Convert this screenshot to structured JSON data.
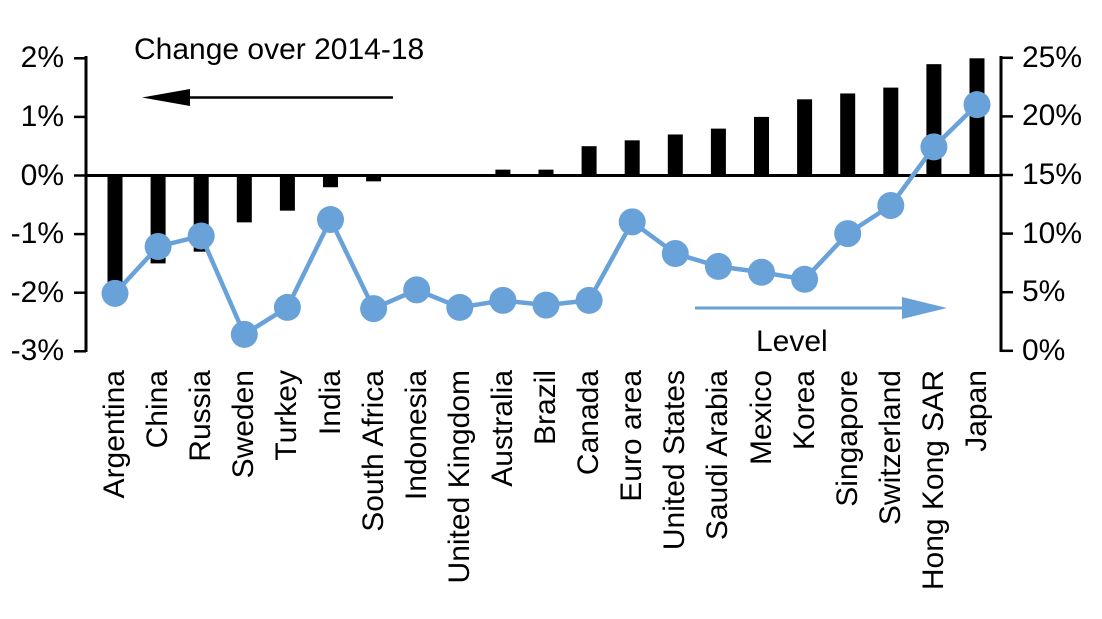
{
  "chart_title": "Change over 2014-18",
  "level_label": "Level",
  "colors": {
    "bar": "#000000",
    "line": "#69A2D8",
    "axis": "#000000"
  },
  "chart_data": {
    "type": "bar+line",
    "title": "Change over 2014-18",
    "categories": [
      "Argentina",
      "China",
      "Russia",
      "Sweden",
      "Turkey",
      "India",
      "South Africa",
      "Indonesia",
      "United Kingdom",
      "Australia",
      "Brazil",
      "Canada",
      "Euro area",
      "United States",
      "Saudi Arabia",
      "Mexico",
      "Korea",
      "Singapore",
      "Switzerland",
      "Hong Kong SAR",
      "Japan"
    ],
    "series": [
      {
        "name": "Change over 2014-18",
        "type": "bar",
        "axis": "left",
        "unit": "%",
        "values": [
          -2.0,
          -1.5,
          -1.3,
          -0.8,
          -0.6,
          -0.2,
          -0.1,
          0.0,
          0.0,
          0.1,
          0.1,
          0.5,
          0.6,
          0.7,
          0.8,
          1.0,
          1.3,
          1.4,
          1.5,
          1.9,
          2.0
        ]
      },
      {
        "name": "Level",
        "type": "line",
        "axis": "right",
        "unit": "%",
        "values": [
          4.9,
          8.9,
          9.8,
          1.4,
          3.7,
          11.2,
          3.6,
          5.2,
          3.7,
          4.3,
          3.9,
          4.3,
          11.0,
          8.3,
          7.2,
          6.7,
          6.1,
          10.0,
          12.4,
          17.4,
          21.0
        ]
      }
    ],
    "left_axis": {
      "tick_labels": [
        "2%",
        "1%",
        "0%",
        "-1%",
        "-2%",
        "-3%"
      ],
      "tick_values": [
        2,
        1,
        0,
        -1,
        -2,
        -3
      ],
      "range": [
        -3,
        2
      ]
    },
    "right_axis": {
      "tick_labels": [
        "25%",
        "20%",
        "15%",
        "10%",
        "5%",
        "0%"
      ],
      "tick_values": [
        25,
        20,
        15,
        10,
        5,
        0
      ],
      "range": [
        0,
        25
      ]
    },
    "annotations": [
      {
        "text": "Change over 2014-18",
        "arrow_direction": "left",
        "refers_to": "left axis (bars)"
      },
      {
        "text": "Level",
        "arrow_direction": "right",
        "refers_to": "right axis (line)"
      }
    ],
    "grid": false,
    "legend_position": "none"
  }
}
